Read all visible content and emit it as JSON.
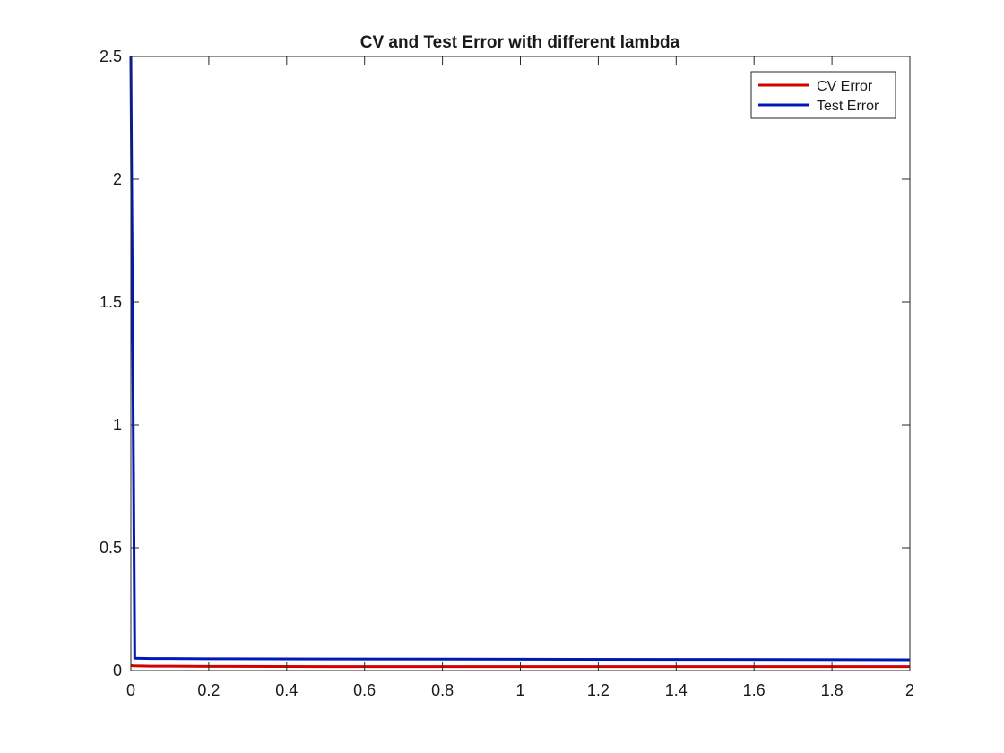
{
  "chart_data": {
    "type": "line",
    "title": "CV and Test Error with different lambda",
    "xlabel": "",
    "ylabel": "",
    "xlim": [
      0,
      2
    ],
    "ylim": [
      0,
      2.5
    ],
    "x_ticks": [
      0,
      0.2,
      0.4,
      0.6,
      0.8,
      1,
      1.2,
      1.4,
      1.6,
      1.8,
      2
    ],
    "x_tick_labels": [
      "0",
      "0.2",
      "0.4",
      "0.6",
      "0.8",
      "1",
      "1.2",
      "1.4",
      "1.6",
      "1.8",
      "2"
    ],
    "y_ticks": [
      0,
      0.5,
      1,
      1.5,
      2,
      2.5
    ],
    "y_tick_labels": [
      "0",
      "0.5",
      "1",
      "1.5",
      "2",
      "2.5"
    ],
    "grid": false,
    "legend_position": "top-right",
    "series": [
      {
        "name": "CV Error",
        "color": "#d40000",
        "x": [
          0,
          0.01,
          0.05,
          0.1,
          0.2,
          0.5,
          1,
          1.5,
          2
        ],
        "y": [
          0.02,
          0.019,
          0.018,
          0.018,
          0.017,
          0.016,
          0.016,
          0.016,
          0.016
        ]
      },
      {
        "name": "Test Error",
        "color": "#0018b8",
        "x": [
          0,
          0.01,
          0.05,
          0.1,
          0.2,
          0.5,
          1,
          1.5,
          2
        ],
        "y": [
          2.5,
          0.05,
          0.049,
          0.049,
          0.048,
          0.047,
          0.046,
          0.045,
          0.044
        ]
      }
    ]
  }
}
